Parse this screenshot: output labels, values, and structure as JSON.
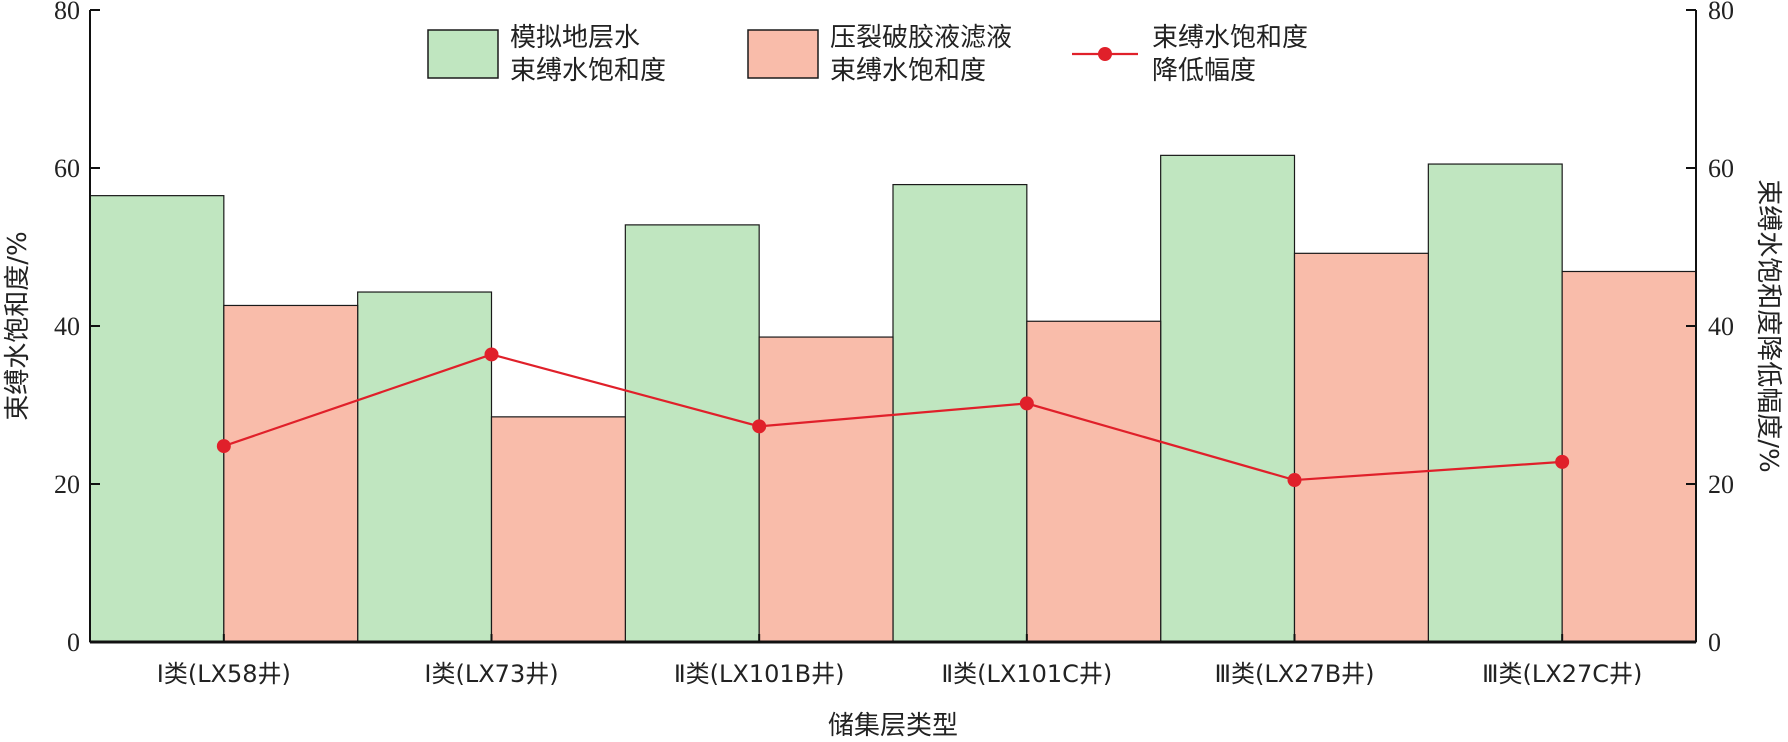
{
  "chart_data": {
    "type": "bar",
    "categories": [
      "Ⅰ类(LX58井)",
      "Ⅰ类(LX73井)",
      "Ⅱ类(LX101B井)",
      "Ⅱ类(LX101C井)",
      "Ⅲ类(LX27B井)",
      "Ⅲ类(LX27C井)"
    ],
    "xlabel": "储集层类型",
    "ylabel": "束缚水饱和度/%",
    "ylabel_right": "束缚水饱和度降低幅度/%",
    "ylim": [
      0,
      80
    ],
    "ylim_right": [
      0,
      80
    ],
    "yticks": [
      "0",
      "20",
      "40",
      "60",
      "80"
    ],
    "yticks_right": [
      "0",
      "20",
      "40",
      "60",
      "80"
    ],
    "grid": false,
    "legend_position": "top-center",
    "series": [
      {
        "name_lines": [
          "模拟地层水",
          "束缚水饱和度"
        ],
        "type": "bar",
        "axis": "left",
        "color": "#c0e6c0",
        "values": [
          56.5,
          44.3,
          52.8,
          57.9,
          61.6,
          60.5
        ]
      },
      {
        "name_lines": [
          "压裂破胶液滤液",
          "束缚水饱和度"
        ],
        "type": "bar",
        "axis": "left",
        "color": "#f9bcaa",
        "values": [
          42.6,
          28.5,
          38.6,
          40.6,
          49.2,
          46.9
        ]
      },
      {
        "name_lines": [
          "束缚水饱和度",
          "降低幅度"
        ],
        "type": "line",
        "axis": "right",
        "color": "#e0202a",
        "values": [
          24.8,
          36.4,
          27.3,
          30.2,
          20.5,
          22.8
        ]
      }
    ]
  }
}
